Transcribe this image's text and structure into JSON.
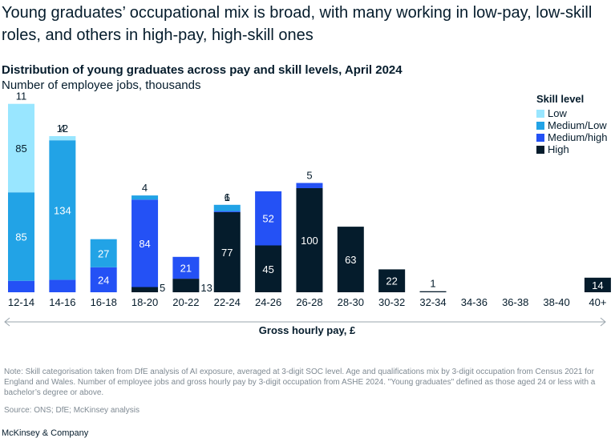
{
  "headline": "Young graduates’ occupational mix is broad, with many working in low-pay, low-skill roles, and others in high-pay, high-skill ones",
  "brand": "McKinsey & Company",
  "note": "Note: Skill categorisation taken from DfE analysis of AI exposure, averaged at 3-digit SOC level. Age and qualifications mix by 3-digit occupation from Census 2021 for England and Wales. Number of employee jobs and gross hourly pay by 3-digit occupation from ASHE 2024. \"Young graduates\" defined as those aged 24 or less with a bachelor’s degree or above.",
  "source": "Source: ONS; DfE; McKinsey analysis",
  "colors": {
    "Low": "#99e6ff",
    "Medium/Low": "#22a3e6",
    "Medium/high": "#2451f5",
    "High": "#051c2c",
    "text": "#051c2c",
    "axis": "#9aa5ad"
  },
  "chart_data": {
    "type": "bar",
    "stacked": true,
    "title": "Distribution of young graduates across pay and skill levels, April 2024",
    "subtitle": "Number of employee jobs, thousands",
    "xlabel": "Gross hourly pay, £",
    "legend_title": "Skill level",
    "legend_position": "top-right",
    "categories": [
      "12-14",
      "14-16",
      "16-18",
      "18-20",
      "20-22",
      "22-24",
      "24-26",
      "26-28",
      "28-30",
      "30-32",
      "32-34",
      "34-36",
      "36-38",
      "38-40",
      "40+"
    ],
    "series": [
      {
        "name": "High",
        "values": [
          0,
          0,
          0,
          5,
          13,
          77,
          45,
          100,
          63,
          22,
          1,
          0,
          0,
          0,
          14
        ]
      },
      {
        "name": "Medium/high",
        "values": [
          11,
          12,
          24,
          84,
          21,
          1,
          52,
          5,
          0,
          0,
          0,
          0,
          0,
          0,
          0
        ]
      },
      {
        "name": "Medium/Low",
        "values": [
          85,
          134,
          27,
          4,
          0,
          6,
          0,
          0,
          0,
          0,
          0,
          0,
          0,
          0,
          0
        ]
      },
      {
        "name": "Low",
        "values": [
          85,
          4,
          0,
          0,
          0,
          0,
          0,
          0,
          0,
          0,
          0,
          0,
          0,
          0,
          0
        ]
      }
    ],
    "grid": false
  }
}
